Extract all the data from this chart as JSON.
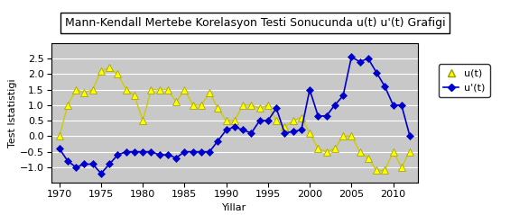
{
  "title": "Mann-Kendall Mertebe Korelasyon Testi Sonucunda u(t) u'(t) Grafigi",
  "xlabel": "Yillar",
  "ylabel": "Test Istatistigi",
  "ylim": [
    -1.5,
    3.0
  ],
  "yticks": [
    -1.0,
    -0.5,
    0.0,
    0.5,
    1.0,
    1.5,
    2.0,
    2.5
  ],
  "xlim": [
    1969,
    2013
  ],
  "xticks": [
    1970,
    1975,
    1980,
    1985,
    1990,
    1995,
    2000,
    2005,
    2010
  ],
  "ut_years": [
    1970,
    1971,
    1972,
    1973,
    1974,
    1975,
    1976,
    1977,
    1978,
    1979,
    1980,
    1981,
    1982,
    1983,
    1984,
    1985,
    1986,
    1987,
    1988,
    1989,
    1990,
    1991,
    1992,
    1993,
    1994,
    1995,
    1996,
    1997,
    1998,
    1999,
    2000,
    2001,
    2002,
    2003,
    2004,
    2005,
    2006,
    2007,
    2008,
    2009,
    2010,
    2011,
    2012
  ],
  "ut_values": [
    0.0,
    1.0,
    1.5,
    1.4,
    1.5,
    2.1,
    2.2,
    2.0,
    1.5,
    1.3,
    0.5,
    1.5,
    1.5,
    1.5,
    1.1,
    1.5,
    1.0,
    1.0,
    1.4,
    0.9,
    0.5,
    0.5,
    1.0,
    1.0,
    0.9,
    1.0,
    0.5,
    0.3,
    0.5,
    0.6,
    0.1,
    -0.4,
    -0.5,
    -0.4,
    0.0,
    0.0,
    -0.5,
    -0.7,
    -1.1,
    -1.1,
    -0.5,
    -1.0,
    -0.5
  ],
  "upt_years": [
    1970,
    1971,
    1972,
    1973,
    1974,
    1975,
    1976,
    1977,
    1978,
    1979,
    1980,
    1981,
    1982,
    1983,
    1984,
    1985,
    1986,
    1987,
    1988,
    1989,
    1990,
    1991,
    1992,
    1993,
    1994,
    1995,
    1996,
    1997,
    1998,
    1999,
    2000,
    2001,
    2002,
    2003,
    2004,
    2005,
    2006,
    2007,
    2008,
    2009,
    2010,
    2011,
    2012
  ],
  "upt_values": [
    -0.4,
    -0.8,
    -1.0,
    -0.9,
    -0.9,
    -1.2,
    -0.9,
    -0.6,
    -0.5,
    -0.5,
    -0.5,
    -0.5,
    -0.6,
    -0.6,
    -0.7,
    -0.5,
    -0.5,
    -0.5,
    -0.5,
    -0.15,
    0.2,
    0.3,
    0.2,
    0.1,
    0.5,
    0.5,
    0.9,
    0.1,
    0.15,
    0.2,
    1.5,
    0.65,
    0.65,
    1.0,
    1.3,
    2.55,
    2.4,
    2.5,
    2.05,
    1.6,
    1.0,
    1.0,
    0.0
  ],
  "ut_color": "#FFFF00",
  "upt_color": "#0000CD",
  "plot_bg_color": "#C8C8C8",
  "outer_bg_color": "#FFFFFF",
  "legend_bg": "#FFFFFF",
  "title_fontsize": 9,
  "axis_fontsize": 8,
  "tick_fontsize": 8
}
